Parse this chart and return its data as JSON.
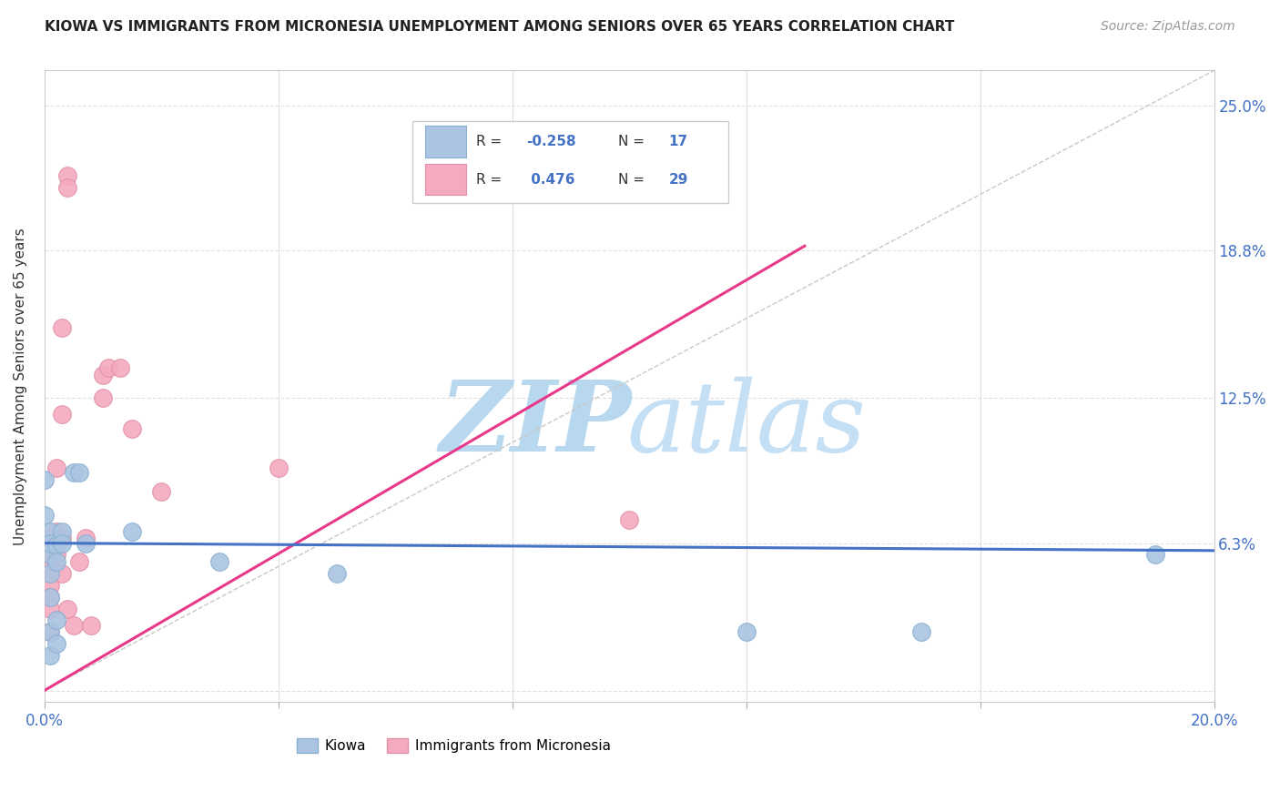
{
  "title": "KIOWA VS IMMIGRANTS FROM MICRONESIA UNEMPLOYMENT AMONG SENIORS OVER 65 YEARS CORRELATION CHART",
  "source": "Source: ZipAtlas.com",
  "ylabel": "Unemployment Among Seniors over 65 years",
  "xlim": [
    0.0,
    0.2
  ],
  "ylim": [
    -0.005,
    0.265
  ],
  "ytick_values": [
    0.0,
    0.063,
    0.125,
    0.188,
    0.25
  ],
  "ytick_labels": [
    "",
    "6.3%",
    "12.5%",
    "18.8%",
    "25.0%"
  ],
  "xtick_values": [
    0.0,
    0.04,
    0.08,
    0.12,
    0.16,
    0.2
  ],
  "xtick_labels": [
    "0.0%",
    "",
    "",
    "",
    "",
    "20.0%"
  ],
  "kiowa_color": "#aac4e2",
  "micronesia_color": "#f5aabf",
  "kiowa_edge": "#8ab0d0",
  "micronesia_edge": "#e090a8",
  "kiowa_line_color": "#4472c4",
  "micronesia_line_color": "#e8388a",
  "diagonal_line_color": "#c8c8c8",
  "background_color": "#ffffff",
  "grid_color": "#e0e0e0",
  "watermark_color": "#cce4f5",
  "kiowa_scatter": [
    [
      0.0,
      0.09
    ],
    [
      0.0,
      0.075
    ],
    [
      0.001,
      0.068
    ],
    [
      0.001,
      0.058
    ],
    [
      0.001,
      0.063
    ],
    [
      0.001,
      0.05
    ],
    [
      0.001,
      0.04
    ],
    [
      0.001,
      0.025
    ],
    [
      0.001,
      0.015
    ],
    [
      0.002,
      0.062
    ],
    [
      0.002,
      0.055
    ],
    [
      0.002,
      0.03
    ],
    [
      0.002,
      0.02
    ],
    [
      0.003,
      0.068
    ],
    [
      0.003,
      0.063
    ],
    [
      0.005,
      0.093
    ],
    [
      0.006,
      0.093
    ],
    [
      0.007,
      0.063
    ],
    [
      0.015,
      0.068
    ],
    [
      0.03,
      0.055
    ],
    [
      0.05,
      0.05
    ],
    [
      0.12,
      0.025
    ],
    [
      0.15,
      0.025
    ],
    [
      0.19,
      0.058
    ]
  ],
  "micronesia_scatter": [
    [
      0.001,
      0.065
    ],
    [
      0.001,
      0.055
    ],
    [
      0.001,
      0.05
    ],
    [
      0.001,
      0.045
    ],
    [
      0.001,
      0.04
    ],
    [
      0.001,
      0.035
    ],
    [
      0.001,
      0.025
    ],
    [
      0.002,
      0.095
    ],
    [
      0.002,
      0.068
    ],
    [
      0.002,
      0.058
    ],
    [
      0.003,
      0.155
    ],
    [
      0.003,
      0.118
    ],
    [
      0.003,
      0.065
    ],
    [
      0.003,
      0.05
    ],
    [
      0.004,
      0.22
    ],
    [
      0.004,
      0.215
    ],
    [
      0.004,
      0.035
    ],
    [
      0.005,
      0.028
    ],
    [
      0.006,
      0.055
    ],
    [
      0.007,
      0.065
    ],
    [
      0.008,
      0.028
    ],
    [
      0.01,
      0.135
    ],
    [
      0.01,
      0.125
    ],
    [
      0.011,
      0.138
    ],
    [
      0.013,
      0.138
    ],
    [
      0.015,
      0.112
    ],
    [
      0.02,
      0.085
    ],
    [
      0.04,
      0.095
    ],
    [
      0.1,
      0.073
    ]
  ],
  "micronesia_trend_x": [
    0.0,
    0.13
  ],
  "micronesia_trend_y": [
    0.0,
    0.19
  ],
  "kiowa_trend_x": [
    0.0,
    0.2
  ],
  "kiowa_trend_y_start": 0.063,
  "kiowa_trend_slope": -0.016
}
